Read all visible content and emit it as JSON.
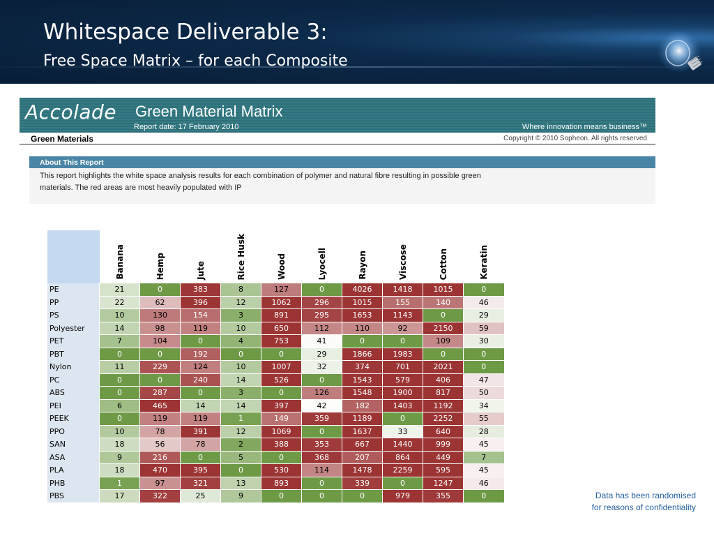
{
  "slide": {
    "title": "Whitespace Deliverable 3:",
    "subtitle": "Free Space Matrix – for each Composite"
  },
  "report": {
    "brand": "Accolade",
    "title": "Green Material Matrix",
    "date": "Report date: 17 February 2010",
    "tagline": "Where innovation means business™",
    "section": "Green Materials",
    "copyright": "Copyright © 2010 Sopheon. All rights reserved"
  },
  "about": {
    "header": "About This Report",
    "text": "This report highlights the white space analysis results for each combination of polymer and natural fibre resulting in possible green materials.  The red areas are most heavily populated with IP"
  },
  "matrix": {
    "columns": [
      "Banana",
      "Hemp",
      "Jute",
      "Rice Husk",
      "Wood",
      "Lyocell",
      "Rayon",
      "Viscose",
      "Cotton",
      "Keratin"
    ],
    "rows": [
      {
        "label": "PE",
        "values": [
          21,
          0,
          383,
          8,
          127,
          0,
          4026,
          1418,
          1015,
          0
        ]
      },
      {
        "label": "PP",
        "values": [
          22,
          62,
          396,
          12,
          1062,
          296,
          1015,
          155,
          140,
          46
        ]
      },
      {
        "label": "PS",
        "values": [
          10,
          130,
          154,
          3,
          891,
          295,
          1653,
          1143,
          0,
          29
        ]
      },
      {
        "label": "Polyester",
        "values": [
          14,
          98,
          119,
          10,
          650,
          112,
          110,
          92,
          2150,
          59
        ]
      },
      {
        "label": "PET",
        "values": [
          7,
          104,
          0,
          4,
          753,
          41,
          0,
          0,
          109,
          30
        ]
      },
      {
        "label": "PBT",
        "values": [
          0,
          0,
          192,
          0,
          0,
          29,
          1866,
          1983,
          0,
          0
        ]
      },
      {
        "label": "Nylon",
        "values": [
          11,
          229,
          124,
          10,
          1007,
          32,
          374,
          701,
          2021,
          0
        ]
      },
      {
        "label": "PC",
        "values": [
          0,
          0,
          240,
          14,
          526,
          0,
          1543,
          579,
          406,
          47
        ]
      },
      {
        "label": "ABS",
        "values": [
          0,
          287,
          0,
          3,
          0,
          126,
          1548,
          1900,
          817,
          50
        ]
      },
      {
        "label": "PEI",
        "values": [
          6,
          465,
          14,
          14,
          397,
          42,
          182,
          1403,
          1192,
          34
        ]
      },
      {
        "label": "PEEK",
        "values": [
          0,
          119,
          119,
          1,
          149,
          359,
          1189,
          0,
          2252,
          55
        ]
      },
      {
        "label": "PPO",
        "values": [
          10,
          78,
          391,
          12,
          1069,
          0,
          1637,
          33,
          640,
          28
        ]
      },
      {
        "label": "SAN",
        "values": [
          18,
          56,
          78,
          2,
          388,
          353,
          667,
          1440,
          999,
          45
        ]
      },
      {
        "label": "ASA",
        "values": [
          9,
          216,
          0,
          5,
          0,
          368,
          207,
          864,
          449,
          7
        ]
      },
      {
        "label": "PLA",
        "values": [
          18,
          470,
          395,
          0,
          530,
          114,
          1478,
          2259,
          595,
          45
        ]
      },
      {
        "label": "PHB",
        "values": [
          1,
          97,
          321,
          13,
          893,
          0,
          339,
          0,
          1247,
          46
        ]
      },
      {
        "label": "PBS",
        "values": [
          17,
          322,
          25,
          9,
          0,
          0,
          0,
          979,
          355,
          0
        ]
      }
    ]
  },
  "footnote": {
    "line1": "Data has been randomised",
    "line2": "for reasons of confidentiality"
  },
  "colors": {
    "header_bg": "#0c2a4a",
    "banner_teal": "#2e6f78",
    "about_header": "#4a85a5",
    "row_header": "#dce6f1",
    "heat_green": "#6e9a46",
    "heat_red": "#9c3434",
    "footnote": "#1f5fa0"
  }
}
